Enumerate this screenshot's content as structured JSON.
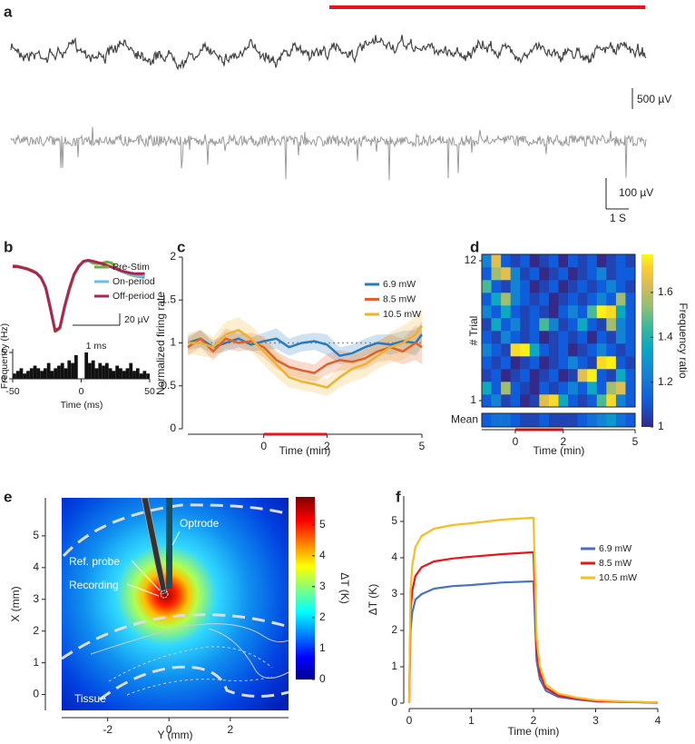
{
  "chart_data": [
    {
      "type": "trace",
      "panel": "a",
      "scale_bars": [
        {
          "value": 500,
          "label": "500 µV"
        },
        {
          "value": 100,
          "label": "100 µV"
        },
        {
          "value": 1,
          "label": "1 S"
        }
      ]
    },
    {
      "type": "line",
      "panel": "b",
      "x": [
        0,
        0.1,
        0.2,
        0.3,
        0.4,
        0.5,
        0.6,
        0.7,
        0.8,
        0.9,
        1.0,
        1.1,
        1.2,
        1.3,
        1.4,
        1.5,
        1.6,
        1.7,
        1.8,
        1.9,
        2.0,
        2.1,
        2.2,
        2.3,
        2.4,
        2.5,
        2.6,
        2.7,
        2.8
      ],
      "series": [
        {
          "name": "Pre-Stim",
          "color": "#6fae3e",
          "values": [
            12,
            11,
            9,
            7,
            4,
            0,
            -8,
            -25,
            -60,
            -100,
            -95,
            -60,
            -30,
            -5,
            10,
            18,
            20,
            16,
            15,
            16,
            18,
            16,
            8,
            3,
            -1,
            -4,
            -6,
            -7,
            -8
          ]
        },
        {
          "name": "On-period",
          "color": "#5ec3ea",
          "values": [
            11,
            10,
            9,
            6,
            3,
            0,
            -7,
            -24,
            -58,
            -98,
            -94,
            -58,
            -28,
            -4,
            11,
            18,
            20,
            19,
            17,
            14,
            12,
            9,
            6,
            2,
            -1,
            -3,
            -5,
            -6,
            -7
          ]
        },
        {
          "name": "Off-period",
          "color": "#b2234a",
          "values": [
            10,
            10,
            8,
            6,
            3,
            -1,
            -9,
            -26,
            -62,
            -99,
            -93,
            -57,
            -27,
            -3,
            11,
            19,
            21,
            19,
            17,
            15,
            12,
            9,
            6,
            3,
            1,
            -1,
            -2,
            -2,
            -2
          ]
        }
      ],
      "scale_bars": [
        {
          "value": 20,
          "label": "20 µV"
        },
        {
          "value": 1,
          "label": "1 ms"
        }
      ]
    },
    {
      "type": "histogram",
      "xlabel": "Time (ms)",
      "ylabel": "Frequency (Hz)",
      "color": "#111111",
      "bins": [
        -50,
        -47.5,
        -45,
        -42.5,
        -40,
        -37.5,
        -35,
        -32.5,
        -30,
        -27.5,
        -25,
        -22.5,
        -20,
        -17.5,
        -15,
        -12.5,
        -10,
        -7.5,
        -5,
        -2.5,
        0,
        2.5,
        5,
        7.5,
        10,
        12.5,
        15,
        17.5,
        20,
        22.5,
        25,
        27.5,
        30,
        32.5,
        35,
        37.5,
        40,
        42.5,
        45,
        47.5,
        50
      ],
      "values": [
        0.1,
        0.15,
        0.2,
        0.1,
        0.15,
        0.2,
        0.25,
        0.2,
        0.15,
        0.2,
        0.3,
        0.15,
        0.2,
        0.25,
        0.3,
        0.2,
        0.35,
        0.3,
        0.45,
        0,
        0,
        0.5,
        0.3,
        0.35,
        0.2,
        0.3,
        0.25,
        0.3,
        0.2,
        0.15,
        0.25,
        0.2,
        0.15,
        0.2,
        0.3,
        0.15,
        0.2,
        0.1,
        0.15,
        0.1
      ],
      "xlim": [
        -50,
        50
      ],
      "xticks": [
        -50,
        0,
        50
      ],
      "ylim": [
        0,
        0.5
      ],
      "yticks": [
        0,
        0.5
      ]
    },
    {
      "type": "line",
      "panel": "c",
      "xlabel": "Time (min)",
      "ylabel": "Normalized firing rate",
      "x": [
        -2.4,
        -2.0,
        -1.6,
        -1.2,
        -0.8,
        -0.4,
        0,
        0.4,
        0.8,
        1.2,
        1.6,
        2.0,
        2.4,
        2.8,
        3.2,
        3.6,
        4.0,
        4.4,
        4.8,
        5.0
      ],
      "series": [
        {
          "name": "6.9 mW",
          "color": "#2b7bba",
          "values": [
            1.0,
            1.05,
            0.95,
            1.0,
            1.05,
            0.98,
            1.02,
            1.05,
            0.95,
            1.0,
            1.02,
            0.98,
            0.85,
            0.88,
            0.95,
            1.0,
            0.98,
            1.02,
            1.0,
            1.1
          ],
          "errors": [
            0.08,
            0.1,
            0.08,
            0.1,
            0.1,
            0.08,
            0.1,
            0.12,
            0.1,
            0.1,
            0.1,
            0.12,
            0.1,
            0.1,
            0.1,
            0.1,
            0.12,
            0.12,
            0.15,
            0.15
          ]
        },
        {
          "name": "8.5 mW",
          "color": "#e2602a",
          "values": [
            0.95,
            1.05,
            0.9,
            1.05,
            1.0,
            1.02,
            0.95,
            0.8,
            0.72,
            0.68,
            0.65,
            0.75,
            0.8,
            0.78,
            0.82,
            0.9,
            0.95,
            0.9,
            1.0,
            0.95
          ],
          "errors": [
            0.1,
            0.1,
            0.1,
            0.12,
            0.1,
            0.1,
            0.12,
            0.1,
            0.1,
            0.1,
            0.1,
            0.12,
            0.12,
            0.1,
            0.12,
            0.12,
            0.15,
            0.15,
            0.2,
            0.2
          ]
        },
        {
          "name": "10.5 mW",
          "color": "#f0b12f",
          "values": [
            1.0,
            1.0,
            0.95,
            1.1,
            1.15,
            1.05,
            0.9,
            0.75,
            0.6,
            0.55,
            0.52,
            0.48,
            0.6,
            0.7,
            0.75,
            0.85,
            0.95,
            1.0,
            1.1,
            1.2
          ],
          "errors": [
            0.12,
            0.15,
            0.12,
            0.15,
            0.15,
            0.15,
            0.15,
            0.15,
            0.12,
            0.1,
            0.1,
            0.1,
            0.12,
            0.15,
            0.15,
            0.15,
            0.18,
            0.2,
            0.2,
            0.2
          ]
        }
      ],
      "reference_line": 1,
      "stimulation": [
        0,
        2
      ],
      "stimulation_color": "#e8141c",
      "xlim": [
        -2.4,
        5
      ],
      "xticks": [
        0,
        2,
        5
      ],
      "ylim": [
        0,
        2
      ],
      "yticks": [
        0,
        0.5,
        1,
        1.5,
        2
      ]
    },
    {
      "type": "heatmap",
      "panel": "d",
      "xlabel": "Time (min)",
      "ylabel": "# Trial",
      "mean_label": "Mean",
      "clabel": "Frequency ratio",
      "colormap": "parula",
      "x": [
        -1.4,
        -1.0,
        -0.6,
        -0.2,
        0.2,
        0.6,
        1.0,
        1.4,
        1.8,
        2.2,
        2.6,
        3.0,
        3.4,
        3.8,
        4.2,
        4.6
      ],
      "values": [
        [
          1.1,
          1.2,
          1.05,
          1.1,
          1.0,
          1.05,
          1.6,
          1.7,
          1.3,
          1.1,
          1.05,
          1.1,
          1.4,
          1.7,
          1.2,
          1.1
        ],
        [
          1.3,
          1.1,
          1.5,
          1.1,
          1.05,
          1.0,
          1.1,
          1.05,
          1.1,
          1.2,
          1.1,
          1.3,
          1.1,
          1.5,
          1.6,
          1.1
        ],
        [
          1.05,
          1.1,
          1.0,
          1.05,
          1.1,
          1.0,
          1.05,
          1.1,
          1.0,
          1.05,
          1.6,
          1.75,
          1.1,
          1.05,
          1.3,
          1.1
        ],
        [
          1.1,
          1.05,
          1.1,
          1.0,
          1.05,
          1.1,
          1.0,
          1.05,
          1.1,
          1.2,
          1.1,
          1.05,
          1.7,
          1.75,
          1.1,
          1.05
        ],
        [
          1.2,
          1.1,
          1.05,
          1.7,
          1.75,
          1.3,
          1.1,
          1.05,
          1.1,
          1.0,
          1.05,
          1.1,
          1.2,
          1.1,
          1.05,
          1.1
        ],
        [
          1.1,
          1.05,
          1.2,
          1.1,
          1.05,
          1.1,
          1.0,
          1.05,
          1.1,
          1.05,
          1.1,
          1.0,
          1.1,
          1.05,
          1.2,
          1.1
        ],
        [
          1.05,
          1.3,
          1.1,
          1.2,
          1.05,
          1.1,
          1.4,
          1.2,
          1.05,
          1.1,
          1.3,
          1.1,
          1.05,
          1.5,
          1.2,
          1.1
        ],
        [
          1.2,
          1.1,
          1.3,
          1.1,
          1.05,
          1.1,
          1.05,
          1.0,
          1.1,
          1.2,
          1.1,
          1.4,
          1.75,
          1.7,
          1.3,
          1.1
        ],
        [
          1.1,
          1.3,
          1.5,
          1.2,
          1.1,
          1.05,
          1.1,
          1.0,
          1.05,
          1.1,
          1.05,
          1.1,
          1.2,
          1.1,
          1.5,
          1.1
        ],
        [
          1.4,
          1.1,
          1.05,
          1.2,
          1.1,
          1.0,
          1.05,
          1.1,
          1.0,
          1.05,
          1.1,
          1.05,
          1.1,
          1.2,
          1.1,
          1.05
        ],
        [
          1.1,
          1.5,
          1.6,
          1.2,
          1.05,
          1.1,
          1.0,
          1.05,
          1.1,
          1.0,
          1.05,
          1.1,
          1.2,
          1.05,
          1.1,
          1.1
        ],
        [
          1.2,
          1.6,
          1.1,
          1.05,
          1.1,
          1.0,
          1.05,
          1.1,
          1.0,
          1.1,
          1.05,
          1.1,
          1.0,
          1.05,
          1.1,
          1.05
        ]
      ],
      "mean": [
        1.1,
        1.15,
        1.15,
        1.1,
        1.05,
        1.05,
        1.1,
        1.05,
        1.05,
        1.05,
        1.1,
        1.15,
        1.2,
        1.25,
        1.15,
        1.1
      ],
      "stimulation": [
        0,
        2
      ],
      "stimulation_color": "#c0141c",
      "xlim": [
        -1.4,
        5
      ],
      "xticks": [
        0,
        2,
        5
      ],
      "ylim": [
        0.5,
        12.5
      ],
      "yticks": [
        1,
        12
      ],
      "clim": [
        1,
        1.77
      ],
      "cticks": [
        1,
        1.2,
        1.4,
        1.6
      ]
    },
    {
      "type": "image",
      "panel": "e",
      "xlabel": "Y (mm)",
      "ylabel": "X (mm)",
      "clabel": "ΔT (K)",
      "colormap": "jet",
      "annotations": [
        "Optrode",
        "Ref. probe",
        "Recording",
        "Tissue"
      ],
      "xlim": [
        -3.5,
        3.9
      ],
      "xticks": [
        -2,
        0,
        2
      ],
      "ylim": [
        -0.5,
        6.2
      ],
      "yticks": [
        0,
        1,
        2,
        3,
        4,
        5
      ],
      "clim": [
        0,
        5.9
      ],
      "cticks": [
        0,
        1,
        2,
        3,
        4,
        5
      ]
    },
    {
      "type": "line",
      "panel": "f",
      "xlabel": "Time (min)",
      "ylabel": "ΔT (K)",
      "x": [
        0,
        0.02,
        0.05,
        0.1,
        0.2,
        0.4,
        0.7,
        1,
        1.5,
        1.98,
        2.0,
        2.05,
        2.1,
        2.2,
        2.4,
        2.7,
        3,
        3.5,
        4
      ],
      "series": [
        {
          "name": "6.9 mW",
          "color": "#4a72c4",
          "values": [
            0,
            2.0,
            2.5,
            2.85,
            3.0,
            3.15,
            3.22,
            3.25,
            3.32,
            3.35,
            3.35,
            1.17,
            0.67,
            0.34,
            0.17,
            0.1,
            0.05,
            0.03,
            0.01
          ]
        },
        {
          "name": "8.5 mW",
          "color": "#e8141c",
          "values": [
            0,
            2.5,
            3.1,
            3.5,
            3.74,
            3.9,
            3.98,
            4.03,
            4.1,
            4.15,
            4.15,
            1.45,
            0.83,
            0.42,
            0.21,
            0.12,
            0.06,
            0.03,
            0.02
          ]
        },
        {
          "name": "10.5 mW",
          "color": "#f7bd24",
          "values": [
            0,
            3.06,
            3.8,
            4.3,
            4.6,
            4.8,
            4.9,
            4.95,
            5.05,
            5.1,
            5.1,
            1.79,
            1.02,
            0.51,
            0.26,
            0.15,
            0.08,
            0.04,
            0.02
          ]
        }
      ],
      "xlim": [
        0,
        4
      ],
      "xticks": [
        0,
        1,
        2,
        3,
        4
      ],
      "ylim": [
        0,
        5.7
      ],
      "yticks": [
        0,
        1,
        2,
        3,
        4,
        5
      ]
    }
  ]
}
